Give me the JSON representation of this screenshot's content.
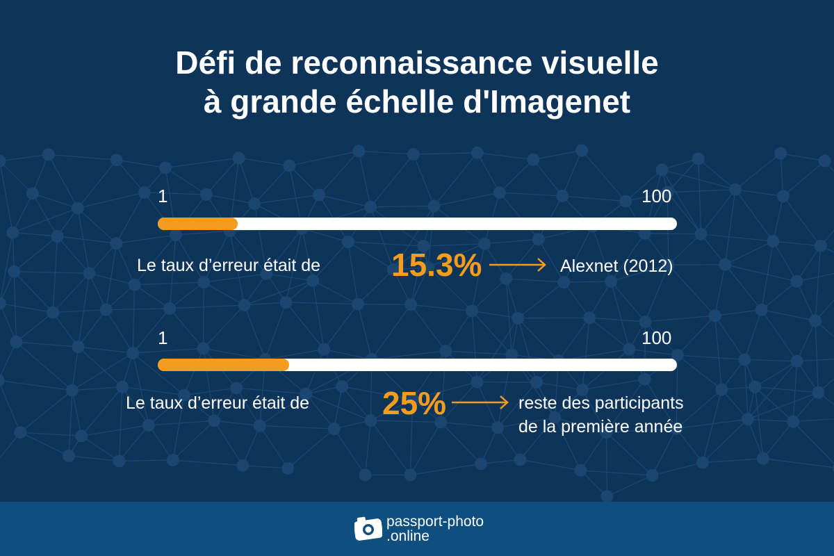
{
  "header": {
    "title_line1": "Défi de reconnaissance visuelle",
    "title_line2": "à grande échelle d'Imagenet"
  },
  "colors": {
    "background": "#0e3459",
    "footer": "#0f4f7f",
    "accent": "#f39c1f",
    "track": "#ffffff",
    "text": "#ffffff"
  },
  "chart_data": [
    {
      "type": "bar",
      "scale_min_label": "1",
      "scale_max_label": "100",
      "xlim": [
        1,
        100
      ],
      "value": 15.3,
      "lead_text": "Le taux d’erreur était de",
      "value_label": "15.3%",
      "target_lines": [
        "Alexnet (2012)"
      ]
    },
    {
      "type": "bar",
      "scale_min_label": "1",
      "scale_max_label": "100",
      "xlim": [
        1,
        100
      ],
      "value": 25,
      "lead_text": "Le taux d’erreur était de",
      "value_label": "25%",
      "target_lines": [
        "reste des participants",
        "de la première année"
      ]
    }
  ],
  "footer": {
    "brand_line1": "passport-photo",
    "brand_line2": ".online",
    "logo_icon": "camera-icon"
  }
}
